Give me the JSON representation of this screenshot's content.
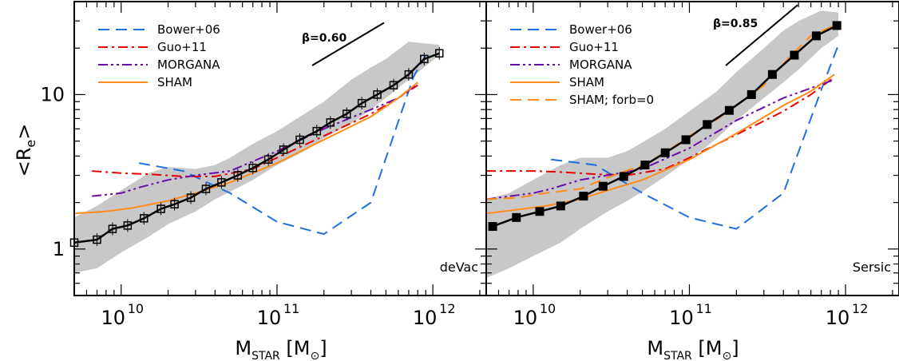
{
  "chart_data": [
    {
      "type": "line",
      "panel_label": "deVac",
      "xlabel": "M_STAR [M_sun]",
      "ylabel": "<R_e>",
      "xscale": "log",
      "yscale": "log",
      "xlim": [
        5000000000.0,
        2200000000000.0
      ],
      "ylim": [
        0.5,
        40
      ],
      "x_ticks": [
        {
          "base": "10",
          "exp": "10",
          "value": 10000000000.0
        },
        {
          "base": "10",
          "exp": "11",
          "value": 100000000000.0
        },
        {
          "base": "10",
          "exp": "12",
          "value": 1000000000000.0
        }
      ],
      "y_ticks": [
        {
          "label": "1",
          "value": 1
        },
        {
          "label": "10",
          "value": 10
        }
      ],
      "slope_annotation": {
        "label": "β=0.60",
        "beta": 0.6
      },
      "scatter_band": {
        "x": [
          5000000000.0,
          7000000000.0,
          10000000000.0,
          15000000000.0,
          20000000000.0,
          30000000000.0,
          40000000000.0,
          50000000000.0,
          70000000000.0,
          100000000000.0,
          150000000000.0,
          200000000000.0,
          300000000000.0,
          400000000000.0,
          500000000000.0,
          700000000000.0,
          1100000000000.0
        ],
        "lower": [
          0.7,
          0.75,
          0.95,
          1.2,
          1.45,
          1.75,
          2.1,
          2.35,
          2.8,
          3.5,
          4.3,
          5.2,
          6.5,
          8.0,
          9.5,
          12.5,
          18.0
        ],
        "upper": [
          1.6,
          1.9,
          2.4,
          3.1,
          3.4,
          3.3,
          3.5,
          3.9,
          4.8,
          5.8,
          7.5,
          9.0,
          12.5,
          15.0,
          17.0,
          22.0,
          21.0
        ]
      },
      "series": [
        {
          "name": "Bower+06",
          "color": "#1f6fe0",
          "dash": "dashed",
          "x": [
            13000000000.0,
            25000000000.0,
            50000000000.0,
            100000000000.0,
            200000000000.0,
            400000000000.0,
            750000000000.0,
            900000000000.0
          ],
          "y": [
            3.6,
            3.2,
            2.3,
            1.5,
            1.25,
            2.0,
            13.0,
            18.0
          ]
        },
        {
          "name": "Guo+11",
          "color": "#e80000",
          "dash": "dashdot",
          "x": [
            6500000000.0,
            10000000000.0,
            15000000000.0,
            25000000000.0,
            40000000000.0,
            70000000000.0,
            100000000000.0,
            200000000000.0,
            400000000000.0,
            600000000000.0,
            800000000000.0
          ],
          "y": [
            3.2,
            3.1,
            3.05,
            2.95,
            2.95,
            3.3,
            3.9,
            5.4,
            7.5,
            9.5,
            11.5
          ]
        },
        {
          "name": "MORGANA",
          "color": "#6a0dad",
          "dash": "dashdotdot",
          "x": [
            6500000000.0,
            10000000000.0,
            13000000000.0,
            20000000000.0,
            30000000000.0,
            50000000000.0,
            100000000000.0,
            200000000000.0,
            400000000000.0,
            600000000000.0,
            800000000000.0
          ],
          "y": [
            2.2,
            2.3,
            2.5,
            2.8,
            3.0,
            3.2,
            4.3,
            6.0,
            8.0,
            9.5,
            11.8
          ]
        },
        {
          "name": "SHAM",
          "color": "#ff8c1a",
          "dash": "solid",
          "x": [
            5000000000.0,
            8000000000.0,
            12000000000.0,
            20000000000.0,
            30000000000.0,
            50000000000.0,
            100000000000.0,
            200000000000.0,
            400000000000.0,
            600000000000.0,
            800000000000.0
          ],
          "y": [
            1.7,
            1.75,
            1.85,
            2.05,
            2.3,
            2.7,
            3.6,
            5.1,
            7.2,
            9.5,
            12.0
          ]
        },
        {
          "name": "",
          "color": "#000000",
          "dash": "solid",
          "markers": "open-square",
          "x": [
            5000000000.0,
            7000000000.0,
            8800000000.0,
            11000000000.0,
            14000000000.0,
            18000000000.0,
            22000000000.0,
            28000000000.0,
            35000000000.0,
            44000000000.0,
            56000000000.0,
            70000000000.0,
            88000000000.0,
            110000000000.0,
            140000000000.0,
            180000000000.0,
            220000000000.0,
            280000000000.0,
            350000000000.0,
            440000000000.0,
            560000000000.0,
            700000000000.0,
            880000000000.0,
            1100000000000.0
          ],
          "y": [
            1.1,
            1.15,
            1.35,
            1.42,
            1.58,
            1.82,
            1.95,
            2.15,
            2.45,
            2.7,
            3.0,
            3.35,
            3.8,
            4.4,
            5.1,
            5.8,
            6.6,
            7.5,
            8.8,
            10.0,
            11.5,
            13.5,
            17.0,
            18.5
          ]
        }
      ]
    },
    {
      "type": "line",
      "panel_label": "Sersic",
      "xlabel": "M_STAR [M_sun]",
      "xscale": "log",
      "yscale": "log",
      "xlim": [
        5000000000.0,
        2200000000000.0
      ],
      "ylim": [
        0.5,
        40
      ],
      "x_ticks": [
        {
          "base": "10",
          "exp": "10",
          "value": 10000000000.0
        },
        {
          "base": "10",
          "exp": "11",
          "value": 100000000000.0
        },
        {
          "base": "10",
          "exp": "12",
          "value": 1000000000000.0
        }
      ],
      "slope_annotation": {
        "label": "β=0.85",
        "beta": 0.85
      },
      "scatter_band": {
        "x": [
          5000000000.0,
          7000000000.0,
          10000000000.0,
          15000000000.0,
          20000000000.0,
          30000000000.0,
          40000000000.0,
          50000000000.0,
          70000000000.0,
          100000000000.0,
          150000000000.0,
          200000000000.0,
          300000000000.0,
          400000000000.0,
          500000000000.0,
          700000000000.0,
          900000000000.0
        ],
        "lower": [
          0.65,
          0.75,
          0.9,
          1.1,
          1.35,
          1.75,
          2.05,
          2.35,
          2.95,
          3.8,
          5.2,
          6.8,
          9.5,
          12.0,
          14.5,
          20.0,
          24.0
        ],
        "upper": [
          2.1,
          2.3,
          2.8,
          3.5,
          3.9,
          3.9,
          4.3,
          4.9,
          6.0,
          7.8,
          10.5,
          14.0,
          20.0,
          26.0,
          30.0,
          35.0,
          34.0
        ]
      },
      "series": [
        {
          "name": "Bower+06",
          "color": "#1f6fe0",
          "dash": "dashed",
          "x": [
            13000000000.0,
            25000000000.0,
            50000000000.0,
            100000000000.0,
            200000000000.0,
            400000000000.0,
            750000000000.0,
            900000000000.0
          ],
          "y": [
            3.8,
            3.5,
            2.3,
            1.6,
            1.35,
            2.3,
            13.0,
            21.0
          ]
        },
        {
          "name": "Guo+11",
          "color": "#e80000",
          "dash": "dashdot",
          "x": [
            5000000000.0,
            10000000000.0,
            15000000000.0,
            25000000000.0,
            40000000000.0,
            70000000000.0,
            100000000000.0,
            200000000000.0,
            400000000000.0,
            600000000000.0,
            850000000000.0
          ],
          "y": [
            3.2,
            3.2,
            3.15,
            3.05,
            3.0,
            3.3,
            3.9,
            5.5,
            7.8,
            10.0,
            13.0
          ]
        },
        {
          "name": "MORGANA",
          "color": "#6a0dad",
          "dash": "dashdotdot",
          "x": [
            5000000000.0,
            10000000000.0,
            13000000000.0,
            20000000000.0,
            30000000000.0,
            50000000000.0,
            100000000000.0,
            200000000000.0,
            400000000000.0,
            600000000000.0,
            850000000000.0
          ],
          "y": [
            2.1,
            2.3,
            2.45,
            2.8,
            3.0,
            3.3,
            4.5,
            6.8,
            9.5,
            11.0,
            12.5
          ]
        },
        {
          "name": "SHAM",
          "color": "#ff8c1a",
          "dash": "solid",
          "x": [
            5000000000.0,
            8000000000.0,
            12000000000.0,
            20000000000.0,
            30000000000.0,
            50000000000.0,
            100000000000.0,
            200000000000.0,
            400000000000.0,
            600000000000.0,
            850000000000.0
          ],
          "y": [
            1.7,
            1.8,
            1.9,
            2.1,
            2.4,
            2.8,
            3.8,
            5.6,
            8.5,
            10.5,
            13.5
          ]
        },
        {
          "name": "SHAM; forb=0",
          "color": "#ff8c1a",
          "dash": "dashed",
          "x": [
            5000000000.0,
            8000000000.0,
            12000000000.0,
            20000000000.0,
            30000000000.0,
            50000000000.0,
            70000000000.0,
            100000000000.0,
            150000000000.0,
            200000000000.0,
            300000000000.0,
            450000000000.0,
            600000000000.0,
            850000000000.0
          ],
          "y": [
            2.1,
            2.15,
            2.3,
            2.45,
            2.9,
            3.5,
            4.2,
            5.4,
            6.9,
            8.5,
            11.5,
            18.0,
            24.0,
            28.0
          ]
        },
        {
          "name": "",
          "color": "#000000",
          "dash": "solid",
          "markers": "filled-square",
          "x": [
            5500000000.0,
            7800000000.0,
            11000000000.0,
            15000000000.0,
            21000000000.0,
            28000000000.0,
            38000000000.0,
            52000000000.0,
            70000000000.0,
            95000000000.0,
            130000000000.0,
            180000000000.0,
            250000000000.0,
            340000000000.0,
            470000000000.0,
            650000000000.0,
            880000000000.0
          ],
          "y": [
            1.4,
            1.6,
            1.75,
            1.9,
            2.2,
            2.55,
            2.95,
            3.5,
            4.2,
            5.1,
            6.4,
            7.9,
            10.0,
            13.5,
            18.0,
            24.0,
            28.0
          ]
        }
      ]
    }
  ]
}
